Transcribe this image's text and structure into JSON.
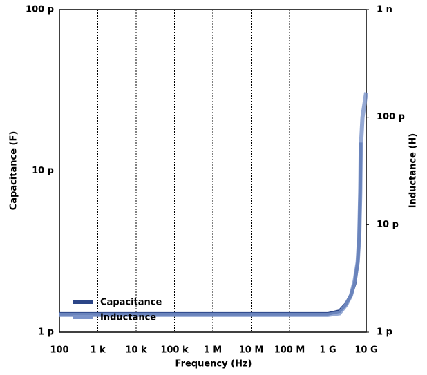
{
  "chart_data": {
    "type": "line",
    "xlabel": "Frequency (Hz)",
    "ylabel": "Capacitance (F)",
    "y2label": "Inductance (H)",
    "log_x": true,
    "log_y": true,
    "grid": true,
    "legend": "lower left",
    "x": [
      100,
      1000,
      10000,
      100000,
      1000000,
      10000000,
      100000000,
      1000000000,
      2000000000,
      3000000000,
      4000000000,
      5000000000,
      6000000000,
      6600000000,
      7000000000,
      7200000000,
      8000000000,
      10000000000
    ],
    "series": [
      {
        "name": "Capacitance",
        "color": "#2b4587",
        "values": [
          1.3e-12,
          1.3e-12,
          1.3e-12,
          1.3e-12,
          1.3e-12,
          1.3e-12,
          1.3e-12,
          1.3e-12,
          1.35e-12,
          1.5e-12,
          1.7e-12,
          2e-12,
          2.7e-12,
          4e-12,
          8e-12,
          1.5e-11,
          null,
          null
        ]
      },
      {
        "name": "Inductance",
        "color": "#7b93c9",
        "axis": "y2",
        "values": [
          1.45e-12,
          1.45e-12,
          1.45e-12,
          1.45e-12,
          1.45e-12,
          1.45e-12,
          1.45e-12,
          1.45e-12,
          1.5e-12,
          1.8e-12,
          2.2e-12,
          3e-12,
          4.5e-12,
          8e-12,
          2e-11,
          5e-11,
          1e-10,
          1.7e-10
        ]
      }
    ],
    "xlim": [
      100,
      10000000000
    ],
    "xticks": [
      100,
      {
        "value": 1000,
        "label": "1 k"
      },
      {
        "value": 10000,
        "label": "10 k"
      },
      {
        "value": 100000,
        "label": "100 k"
      },
      {
        "value": 1000000,
        "label": "1 M"
      },
      {
        "value": 10000000,
        "label": "10 M"
      },
      {
        "value": 100000000,
        "label": "100 M"
      },
      {
        "value": 1000000000,
        "label": "1 G"
      },
      {
        "value": 10000000000,
        "label": "10 G"
      }
    ],
    "ylim": [
      1e-12,
      1e-10
    ],
    "yticks": [
      {
        "value": 1e-12,
        "label": "1 p"
      },
      {
        "value": 1e-11,
        "label": "10 p"
      },
      {
        "value": 1e-10,
        "label": "100 p"
      }
    ],
    "y2lim": [
      1e-12,
      1e-09
    ],
    "y2ticks": [
      {
        "value": 1e-12,
        "label": "1 p"
      },
      {
        "value": 1e-11,
        "label": "10 p"
      },
      {
        "value": 1e-10,
        "label": "100 p"
      },
      {
        "value": 1e-09,
        "label": "1 n"
      }
    ]
  }
}
